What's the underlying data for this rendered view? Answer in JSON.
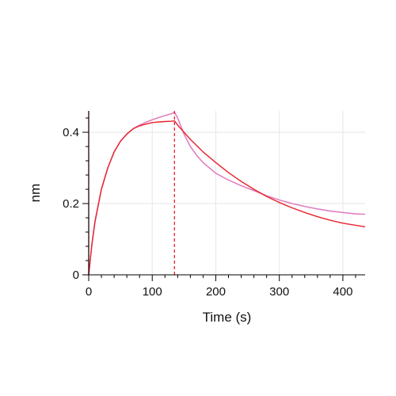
{
  "chart_data": {
    "type": "line",
    "title": "",
    "xlabel": "Time (s)",
    "ylabel": "nm",
    "xlim": [
      0,
      435
    ],
    "ylim": [
      0,
      0.46
    ],
    "x_ticks": [
      0,
      100,
      200,
      300,
      400
    ],
    "x_tick_labels": [
      "0",
      "100",
      "200",
      "300",
      "400"
    ],
    "y_ticks": [
      0,
      0.2,
      0.4
    ],
    "y_tick_labels": [
      "0",
      "0.2",
      "0.4"
    ],
    "grid": true,
    "legend": "none",
    "markers": [
      {
        "x": 0,
        "color": "#8b2020"
      },
      {
        "x": 135,
        "color": "#e8222b",
        "dashed": true
      }
    ],
    "series": [
      {
        "color": "#e080c0",
        "x": [
          0,
          5,
          10,
          20,
          30,
          40,
          50,
          60,
          70,
          80,
          90,
          100,
          110,
          120,
          130,
          135,
          140,
          150,
          160,
          170,
          180,
          200,
          220,
          240,
          260,
          280,
          300,
          320,
          340,
          360,
          380,
          400,
          420,
          435
        ],
        "y": [
          0,
          0.085,
          0.15,
          0.24,
          0.3,
          0.345,
          0.375,
          0.395,
          0.41,
          0.42,
          0.428,
          0.435,
          0.441,
          0.447,
          0.452,
          0.456,
          0.44,
          0.395,
          0.36,
          0.335,
          0.315,
          0.285,
          0.266,
          0.25,
          0.236,
          0.222,
          0.21,
          0.2,
          0.192,
          0.185,
          0.179,
          0.175,
          0.171,
          0.17
        ]
      },
      {
        "color": "#e8222b",
        "x": [
          0,
          5,
          10,
          20,
          30,
          40,
          50,
          60,
          70,
          80,
          90,
          100,
          110,
          120,
          130,
          135,
          140,
          160,
          180,
          200,
          220,
          240,
          260,
          280,
          300,
          320,
          340,
          360,
          380,
          400,
          420,
          435
        ],
        "y": [
          0,
          0.085,
          0.15,
          0.24,
          0.3,
          0.345,
          0.375,
          0.395,
          0.41,
          0.418,
          0.423,
          0.427,
          0.429,
          0.43,
          0.431,
          0.432,
          0.42,
          0.38,
          0.345,
          0.315,
          0.287,
          0.262,
          0.24,
          0.22,
          0.203,
          0.188,
          0.175,
          0.163,
          0.153,
          0.145,
          0.139,
          0.135
        ]
      }
    ]
  }
}
